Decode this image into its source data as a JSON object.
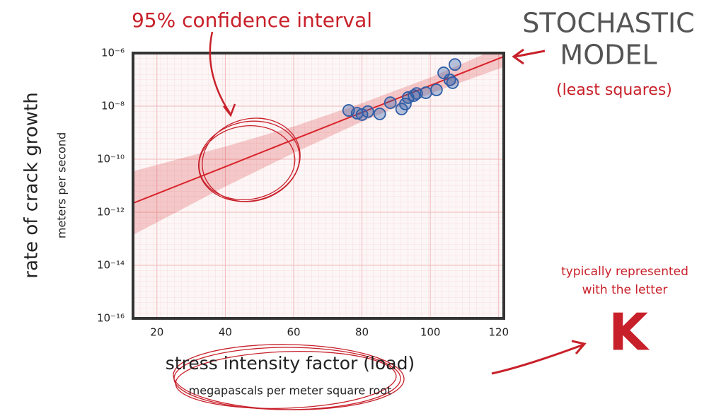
{
  "chart_data": {
    "type": "scatter",
    "annotation_top": "95% confidence interval",
    "model_lines": [
      "STOCHASTIC",
      "MODEL"
    ],
    "model_note": "(least squares)",
    "letter_note_lines": [
      "typically represented",
      "with the letter"
    ],
    "letter": "K",
    "ylabel": "rate of crack growth",
    "ylabel_sub": "meters per second",
    "xlabel": "stress intensity factor (load)",
    "xlabel_sub": "megapascals per meter square root",
    "xlim": [
      13,
      121.5
    ],
    "ylim": [
      1e-16,
      1e-06
    ],
    "log_y": true,
    "grid": true,
    "xticks": [
      20,
      40,
      60,
      80,
      100,
      120
    ],
    "yticks": [
      {
        "value": 1e-16,
        "label": "10⁻¹⁶"
      },
      {
        "value": 1e-14,
        "label": "10⁻¹⁴"
      },
      {
        "value": 1e-12,
        "label": "10⁻¹²"
      },
      {
        "value": 1e-10,
        "label": "10⁻¹⁰"
      },
      {
        "value": 1e-08,
        "label": "10⁻⁸"
      },
      {
        "value": 1e-06,
        "label": "10⁻⁶"
      }
    ],
    "points": {
      "color": "#2f5fa8",
      "x": [
        76.1,
        78.6,
        80,
        81.7,
        85.2,
        88.3,
        91.6,
        92.7,
        93.5,
        95.2,
        96,
        98.7,
        101.8,
        103.9,
        105.7,
        106.5,
        107.2
      ],
      "values": [
        6.9e-09,
        5.4e-09,
        4.8e-09,
        6.2e-09,
        5.1e-09,
        1.35e-08,
        7.8e-09,
        1.2e-08,
        2.1e-08,
        2.5e-08,
        3e-08,
        3.2e-08,
        4.1e-08,
        1.8e-07,
        9.8e-08,
        7.6e-08,
        3.7e-07
      ]
    },
    "fit": {
      "color": "#d8232a",
      "x": [
        13,
        40,
        60,
        80,
        100,
        121.5
      ],
      "values": [
        2.2e-12,
        5.2e-11,
        5.5e-10,
        5.8e-09,
        6e-08,
        7.4e-07
      ],
      "lower": [
        1.4e-13,
        9.3e-12,
        1.7e-10,
        2.6e-09,
        3e-08,
        3e-07
      ],
      "upper": [
        3.5e-11,
        3e-10,
        1.7e-09,
        1.3e-08,
        1.2e-07,
        1.9e-06
      ]
    }
  }
}
